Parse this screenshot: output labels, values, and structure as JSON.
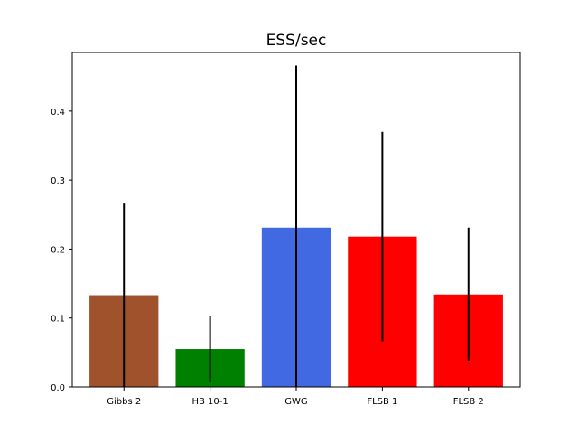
{
  "chart_data": {
    "type": "bar",
    "title": "ESS/sec",
    "xlabel": "",
    "ylabel": "",
    "categories": [
      "Gibbs 2",
      "HB 10-1",
      "GWG",
      "FLSB 1",
      "FLSB 2"
    ],
    "values": [
      0.133,
      0.055,
      0.231,
      0.218,
      0.134
    ],
    "error_low": [
      0.0,
      0.007,
      0.0,
      0.066,
      0.038
    ],
    "error_high": [
      0.266,
      0.103,
      0.466,
      0.37,
      0.231
    ],
    "colors": [
      "#a0522d",
      "#008000",
      "#4169e1",
      "#ff0000",
      "#ff0000"
    ],
    "error_color": "#000000",
    "ylim": [
      0,
      0.485
    ],
    "yticks": [
      0.0,
      0.1,
      0.2,
      0.3,
      0.4
    ],
    "ytick_labels": [
      "0.0",
      "0.1",
      "0.2",
      "0.3",
      "0.4"
    ],
    "grid": false,
    "legend": "none"
  }
}
